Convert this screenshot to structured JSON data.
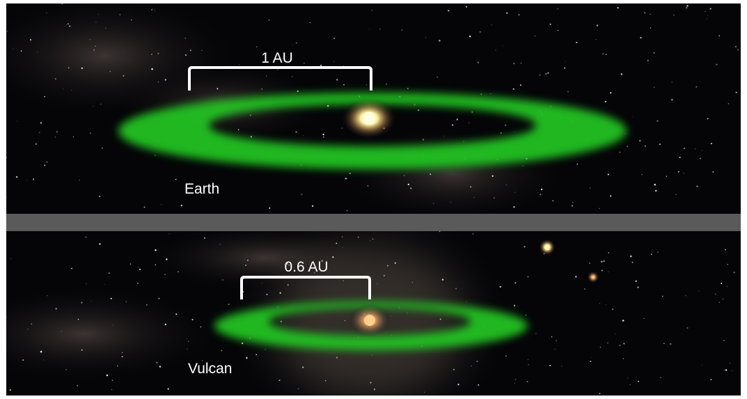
{
  "panels": [
    {
      "scale_label": "1 AU",
      "name": "Earth"
    },
    {
      "scale_label": "0.6 AU",
      "name": "Vulcan"
    }
  ]
}
